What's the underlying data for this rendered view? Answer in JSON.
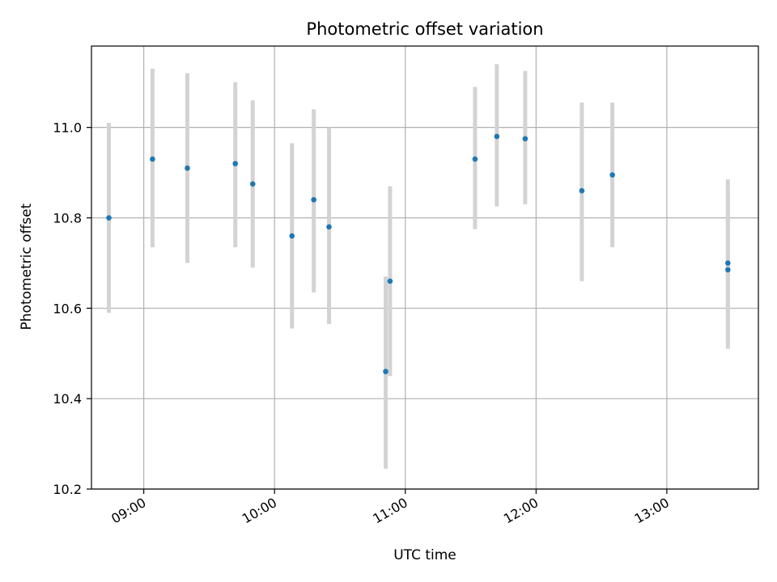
{
  "chart_data": {
    "type": "scatter",
    "title": "Photometric offset variation",
    "xlabel": "UTC time",
    "ylabel": "Photometric offset",
    "grid": true,
    "xlim": [
      "08:36",
      "13:42"
    ],
    "ylim": [
      10.2,
      11.18
    ],
    "x_ticks": [
      "09:00",
      "10:00",
      "11:00",
      "12:00",
      "13:00"
    ],
    "y_ticks": [
      "10.2",
      "10.4",
      "10.6",
      "10.8",
      "11.0"
    ],
    "colors": {
      "point": "#1f77b4",
      "errorbar": "#d3d3d3",
      "grid": "#b0b0b0"
    },
    "points": [
      {
        "x": "08:44",
        "y": 10.8,
        "ylow": 10.59,
        "yhigh": 11.01
      },
      {
        "x": "09:04",
        "y": 10.93,
        "ylow": 10.735,
        "yhigh": 11.13
      },
      {
        "x": "09:20",
        "y": 10.91,
        "ylow": 10.7,
        "yhigh": 11.12
      },
      {
        "x": "09:42",
        "y": 10.92,
        "ylow": 10.735,
        "yhigh": 11.1
      },
      {
        "x": "09:50",
        "y": 10.875,
        "ylow": 10.69,
        "yhigh": 11.06
      },
      {
        "x": "10:08",
        "y": 10.76,
        "ylow": 10.555,
        "yhigh": 10.965
      },
      {
        "x": "10:18",
        "y": 10.84,
        "ylow": 10.635,
        "yhigh": 11.04
      },
      {
        "x": "10:25",
        "y": 10.78,
        "ylow": 10.565,
        "yhigh": 11.0
      },
      {
        "x": "10:51",
        "y": 10.46,
        "ylow": 10.245,
        "yhigh": 10.67
      },
      {
        "x": "10:53",
        "y": 10.66,
        "ylow": 10.45,
        "yhigh": 10.87
      },
      {
        "x": "11:32",
        "y": 10.93,
        "ylow": 10.775,
        "yhigh": 11.09
      },
      {
        "x": "11:42",
        "y": 10.98,
        "ylow": 10.825,
        "yhigh": 11.14
      },
      {
        "x": "11:55",
        "y": 10.975,
        "ylow": 10.83,
        "yhigh": 11.125
      },
      {
        "x": "12:21",
        "y": 10.86,
        "ylow": 10.66,
        "yhigh": 11.055
      },
      {
        "x": "12:35",
        "y": 10.895,
        "ylow": 10.735,
        "yhigh": 11.055
      },
      {
        "x": "13:28",
        "y": 10.685,
        "ylow": 10.51,
        "yhigh": 10.86
      },
      {
        "x": "13:28",
        "y": 10.7,
        "ylow": 10.52,
        "yhigh": 10.885
      }
    ]
  }
}
